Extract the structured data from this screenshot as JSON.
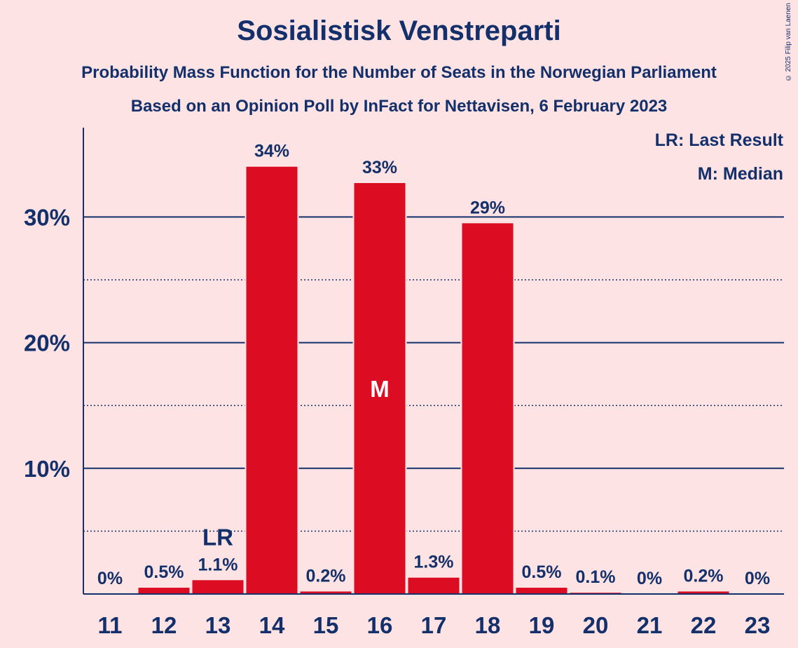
{
  "title": "Sosialistisk Venstreparti",
  "subtitle_1": "Probability Mass Function for the Number of Seats in the Norwegian Parliament",
  "subtitle_2": "Based on an Opinion Poll by InFact for Nettavisen, 6 February 2023",
  "copyright": "© 2025 Filip van Laenen",
  "legend": {
    "last_result": "LR: Last Result",
    "median": "M: Median"
  },
  "colors": {
    "background": "#fde3e3",
    "bar": "#dc0c22",
    "text": "#14306b"
  },
  "chart_data": {
    "type": "bar",
    "title": "Sosialistisk Venstreparti",
    "xlabel": "",
    "ylabel": "",
    "categories": [
      "11",
      "12",
      "13",
      "14",
      "15",
      "16",
      "17",
      "18",
      "19",
      "20",
      "21",
      "22",
      "23"
    ],
    "values": [
      0,
      0.5,
      1.1,
      34,
      0.2,
      33,
      1.3,
      29,
      0.5,
      0.1,
      0,
      0.2,
      0
    ],
    "bar_values_estimated": [
      0,
      0.5,
      1.1,
      34.0,
      0.2,
      32.7,
      1.3,
      29.5,
      0.5,
      0.1,
      0,
      0.2,
      0
    ],
    "value_labels": [
      "0%",
      "0.5%",
      "1.1%",
      "34%",
      "0.2%",
      "33%",
      "1.3%",
      "29%",
      "0.5%",
      "0.1%",
      "0%",
      "0.2%",
      "0%"
    ],
    "yticks": [
      10,
      20,
      30
    ],
    "ytick_labels": [
      "10%",
      "20%",
      "30%"
    ],
    "ylim": [
      0,
      37
    ],
    "minor_gridlines": [
      5,
      15,
      25
    ],
    "last_result": {
      "category": "13",
      "label": "LR"
    },
    "median": {
      "category": "16",
      "label": "M"
    }
  }
}
